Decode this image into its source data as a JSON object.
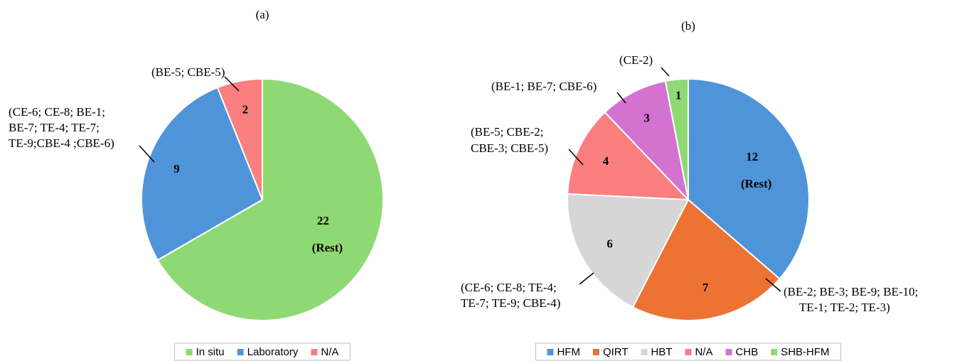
{
  "chart_data": [
    {
      "type": "pie",
      "title": "(a)",
      "categories": [
        "In situ",
        "Laboratory",
        "N/A"
      ],
      "values": [
        22,
        9,
        2
      ],
      "colors": [
        "#8fd975",
        "#4f94d9",
        "#fa7f7f"
      ],
      "sublabels": [
        "(Rest)",
        null,
        null
      ],
      "callouts": [
        null,
        [
          "(CE-6; CE-8; BE-1;",
          "BE-7; TE-4; TE-7;",
          "TE-9;CBE-4 ;CBE-6)"
        ],
        [
          "(BE-5; CBE-5)"
        ]
      ],
      "legend": "bottom"
    },
    {
      "type": "pie",
      "title": "(b)",
      "categories": [
        "HFM",
        "QIRT",
        "HBT",
        "N/A",
        "CHB",
        "SHB-HFM"
      ],
      "values": [
        12,
        7,
        6,
        4,
        3,
        1
      ],
      "colors": [
        "#4f94d9",
        "#ec7333",
        "#d6d6d6",
        "#fa7f7f",
        "#d472d0",
        "#8fd975"
      ],
      "sublabels": [
        "(Rest)",
        null,
        null,
        null,
        null,
        null
      ],
      "callouts": [
        null,
        [
          "(BE-2; BE-3; BE-9; BE-10;",
          "TE-1; TE-2; TE-3)"
        ],
        [
          "(CE-6; CE-8; TE-4;",
          "TE-7; TE-9; CBE-4)"
        ],
        [
          "(BE-5; CBE-2;",
          "CBE-3; CBE-5)"
        ],
        [
          "(BE-1; BE-7; CBE-6)"
        ],
        [
          "(CE-2)"
        ]
      ],
      "legend": "bottom"
    }
  ]
}
